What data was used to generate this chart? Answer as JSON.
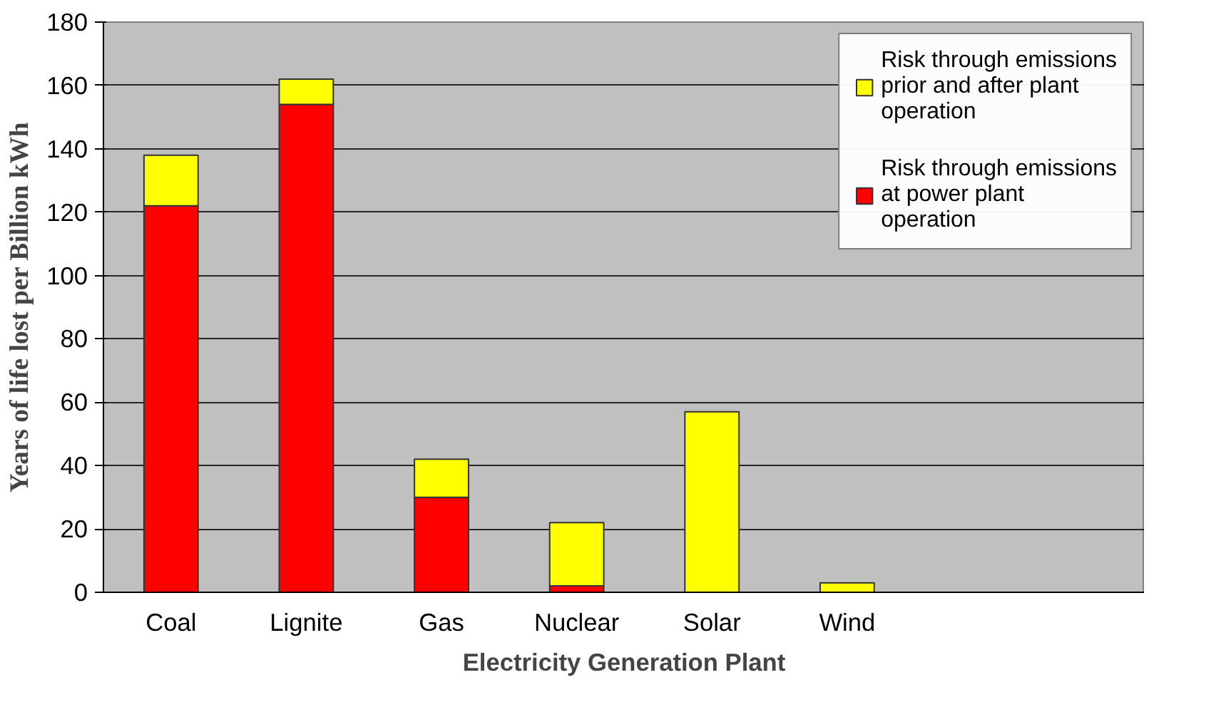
{
  "chart_data": {
    "type": "bar",
    "stacked": true,
    "xlabel": "Electricity Generation Plant",
    "ylabel": "Years of life lost per Billion kWh",
    "categories": [
      "Coal",
      "Lignite",
      "Gas",
      "Nuclear",
      "Solar",
      "Wind"
    ],
    "series": [
      {
        "name": "Risk through emissions at power plant operation",
        "color": "#ff0000",
        "values": [
          122,
          154,
          30,
          2,
          0,
          0
        ]
      },
      {
        "name": "Risk through emissions prior and after plant operation",
        "color": "#ffff00",
        "values": [
          16,
          8,
          12,
          20,
          57,
          3
        ]
      }
    ],
    "ylim": [
      0,
      180
    ],
    "yticks": [
      0,
      20,
      40,
      60,
      80,
      100,
      120,
      140,
      160,
      180
    ],
    "grid": "y",
    "legend": "top right"
  }
}
